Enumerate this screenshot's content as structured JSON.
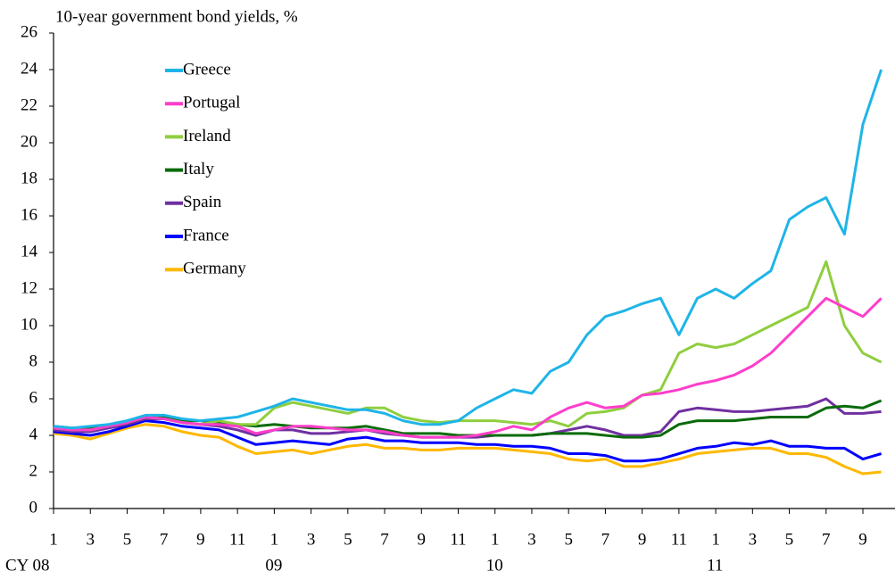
{
  "chart_data": {
    "type": "line",
    "title": "10-year government bond yields, %",
    "x": [
      0,
      1,
      2,
      3,
      4,
      5,
      6,
      7,
      8,
      9,
      10,
      11,
      12,
      13,
      14,
      15,
      16,
      17,
      18,
      19,
      20,
      21,
      22,
      23,
      24,
      25,
      26,
      27,
      28,
      29,
      30,
      31,
      32,
      33,
      34,
      35,
      36,
      37,
      38,
      39,
      40,
      41,
      42,
      43,
      44,
      45
    ],
    "xlim": [
      0,
      45.6
    ],
    "xticks": [
      {
        "value": 0,
        "label": "1"
      },
      {
        "value": 2,
        "label": "3"
      },
      {
        "value": 4,
        "label": "5"
      },
      {
        "value": 6,
        "label": "7"
      },
      {
        "value": 8,
        "label": "9"
      },
      {
        "value": 10,
        "label": "11"
      },
      {
        "value": 12,
        "label": "1"
      },
      {
        "value": 14,
        "label": "3"
      },
      {
        "value": 16,
        "label": "5"
      },
      {
        "value": 18,
        "label": "7"
      },
      {
        "value": 20,
        "label": "9"
      },
      {
        "value": 22,
        "label": "11"
      },
      {
        "value": 24,
        "label": "1"
      },
      {
        "value": 26,
        "label": "3"
      },
      {
        "value": 28,
        "label": "5"
      },
      {
        "value": 30,
        "label": "7"
      },
      {
        "value": 32,
        "label": "9"
      },
      {
        "value": 34,
        "label": "11"
      },
      {
        "value": 36,
        "label": "1"
      },
      {
        "value": 38,
        "label": "3"
      },
      {
        "value": 40,
        "label": "5"
      },
      {
        "value": 42,
        "label": "7"
      },
      {
        "value": 44,
        "label": "9"
      }
    ],
    "year_labels": [
      {
        "value": 0,
        "label": "CY 08"
      },
      {
        "value": 12,
        "label": "09"
      },
      {
        "value": 24,
        "label": "10"
      },
      {
        "value": 36,
        "label": "11"
      }
    ],
    "ylim": [
      0,
      26
    ],
    "yticks": [
      0,
      2,
      4,
      6,
      8,
      10,
      12,
      14,
      16,
      18,
      20,
      22,
      24,
      26
    ],
    "legend": "upper left",
    "series": [
      {
        "name": "Greece",
        "color": "#1fb4e8",
        "values": [
          4.5,
          4.4,
          4.5,
          4.6,
          4.8,
          5.1,
          5.1,
          4.9,
          4.8,
          4.9,
          5.0,
          5.3,
          5.6,
          6.0,
          5.8,
          5.6,
          5.4,
          5.4,
          5.2,
          4.8,
          4.6,
          4.6,
          4.8,
          5.5,
          6.0,
          6.5,
          6.3,
          7.5,
          8.0,
          9.5,
          10.5,
          10.8,
          11.2,
          11.5,
          9.5,
          11.5,
          12.0,
          11.5,
          12.3,
          13.0,
          15.8,
          16.5,
          17.0,
          15.0,
          21.0,
          24.0
        ]
      },
      {
        "name": "Portugal",
        "color": "#ff3ecb",
        "values": [
          4.4,
          4.3,
          4.3,
          4.5,
          4.7,
          5.0,
          4.9,
          4.7,
          4.6,
          4.6,
          4.5,
          4.1,
          4.3,
          4.5,
          4.5,
          4.4,
          4.3,
          4.3,
          4.2,
          4.0,
          3.9,
          3.9,
          3.9,
          4.0,
          4.2,
          4.5,
          4.3,
          5.0,
          5.5,
          5.8,
          5.5,
          5.6,
          6.2,
          6.3,
          6.5,
          6.8,
          7.0,
          7.3,
          7.8,
          8.5,
          9.5,
          10.5,
          11.5,
          11.0,
          10.5,
          11.5
        ]
      },
      {
        "name": "Ireland",
        "color": "#8fce3f",
        "values": [
          4.4,
          4.3,
          4.3,
          4.5,
          4.7,
          5.0,
          4.9,
          4.7,
          4.6,
          4.8,
          4.6,
          4.6,
          5.5,
          5.8,
          5.6,
          5.4,
          5.2,
          5.5,
          5.5,
          5.0,
          4.8,
          4.7,
          4.8,
          4.8,
          4.8,
          4.7,
          4.6,
          4.8,
          4.5,
          5.2,
          5.3,
          5.5,
          6.2,
          6.5,
          8.5,
          9.0,
          8.8,
          9.0,
          9.5,
          10.0,
          10.5,
          11.0,
          13.5,
          10.0,
          8.5,
          8.0
        ]
      },
      {
        "name": "Italy",
        "color": "#0a6b0a",
        "values": [
          4.5,
          4.4,
          4.4,
          4.5,
          4.8,
          5.0,
          5.0,
          4.8,
          4.8,
          4.7,
          4.6,
          4.5,
          4.6,
          4.5,
          4.4,
          4.4,
          4.4,
          4.5,
          4.3,
          4.1,
          4.1,
          4.1,
          4.0,
          4.0,
          4.0,
          4.0,
          4.0,
          4.1,
          4.1,
          4.1,
          4.0,
          3.9,
          3.9,
          4.0,
          4.6,
          4.8,
          4.8,
          4.8,
          4.9,
          5.0,
          5.0,
          5.0,
          5.5,
          5.6,
          5.5,
          5.9
        ]
      },
      {
        "name": "Spain",
        "color": "#7030a0",
        "values": [
          4.3,
          4.2,
          4.2,
          4.4,
          4.6,
          4.9,
          4.9,
          4.7,
          4.6,
          4.5,
          4.3,
          4.0,
          4.3,
          4.3,
          4.1,
          4.1,
          4.2,
          4.3,
          4.1,
          4.0,
          3.9,
          3.9,
          3.9,
          3.9,
          4.0,
          4.0,
          4.0,
          4.1,
          4.3,
          4.5,
          4.3,
          4.0,
          4.0,
          4.2,
          5.3,
          5.5,
          5.4,
          5.3,
          5.3,
          5.4,
          5.5,
          5.6,
          6.0,
          5.2,
          5.2,
          5.3
        ]
      },
      {
        "name": "France",
        "color": "#0000ff",
        "values": [
          4.2,
          4.1,
          4.0,
          4.2,
          4.5,
          4.8,
          4.7,
          4.5,
          4.4,
          4.3,
          3.9,
          3.5,
          3.6,
          3.7,
          3.6,
          3.5,
          3.8,
          3.9,
          3.7,
          3.7,
          3.6,
          3.6,
          3.6,
          3.5,
          3.5,
          3.4,
          3.4,
          3.3,
          3.0,
          3.0,
          2.9,
          2.6,
          2.6,
          2.7,
          3.0,
          3.3,
          3.4,
          3.6,
          3.5,
          3.7,
          3.4,
          3.4,
          3.3,
          3.3,
          2.7,
          3.0
        ]
      },
      {
        "name": "Germany",
        "color": "#ffb800",
        "values": [
          4.1,
          4.0,
          3.8,
          4.1,
          4.4,
          4.6,
          4.5,
          4.2,
          4.0,
          3.9,
          3.4,
          3.0,
          3.1,
          3.2,
          3.0,
          3.2,
          3.4,
          3.5,
          3.3,
          3.3,
          3.2,
          3.2,
          3.3,
          3.3,
          3.3,
          3.2,
          3.1,
          3.0,
          2.7,
          2.6,
          2.7,
          2.3,
          2.3,
          2.5,
          2.7,
          3.0,
          3.1,
          3.2,
          3.3,
          3.3,
          3.0,
          3.0,
          2.8,
          2.3,
          1.9,
          2.0
        ]
      }
    ]
  }
}
